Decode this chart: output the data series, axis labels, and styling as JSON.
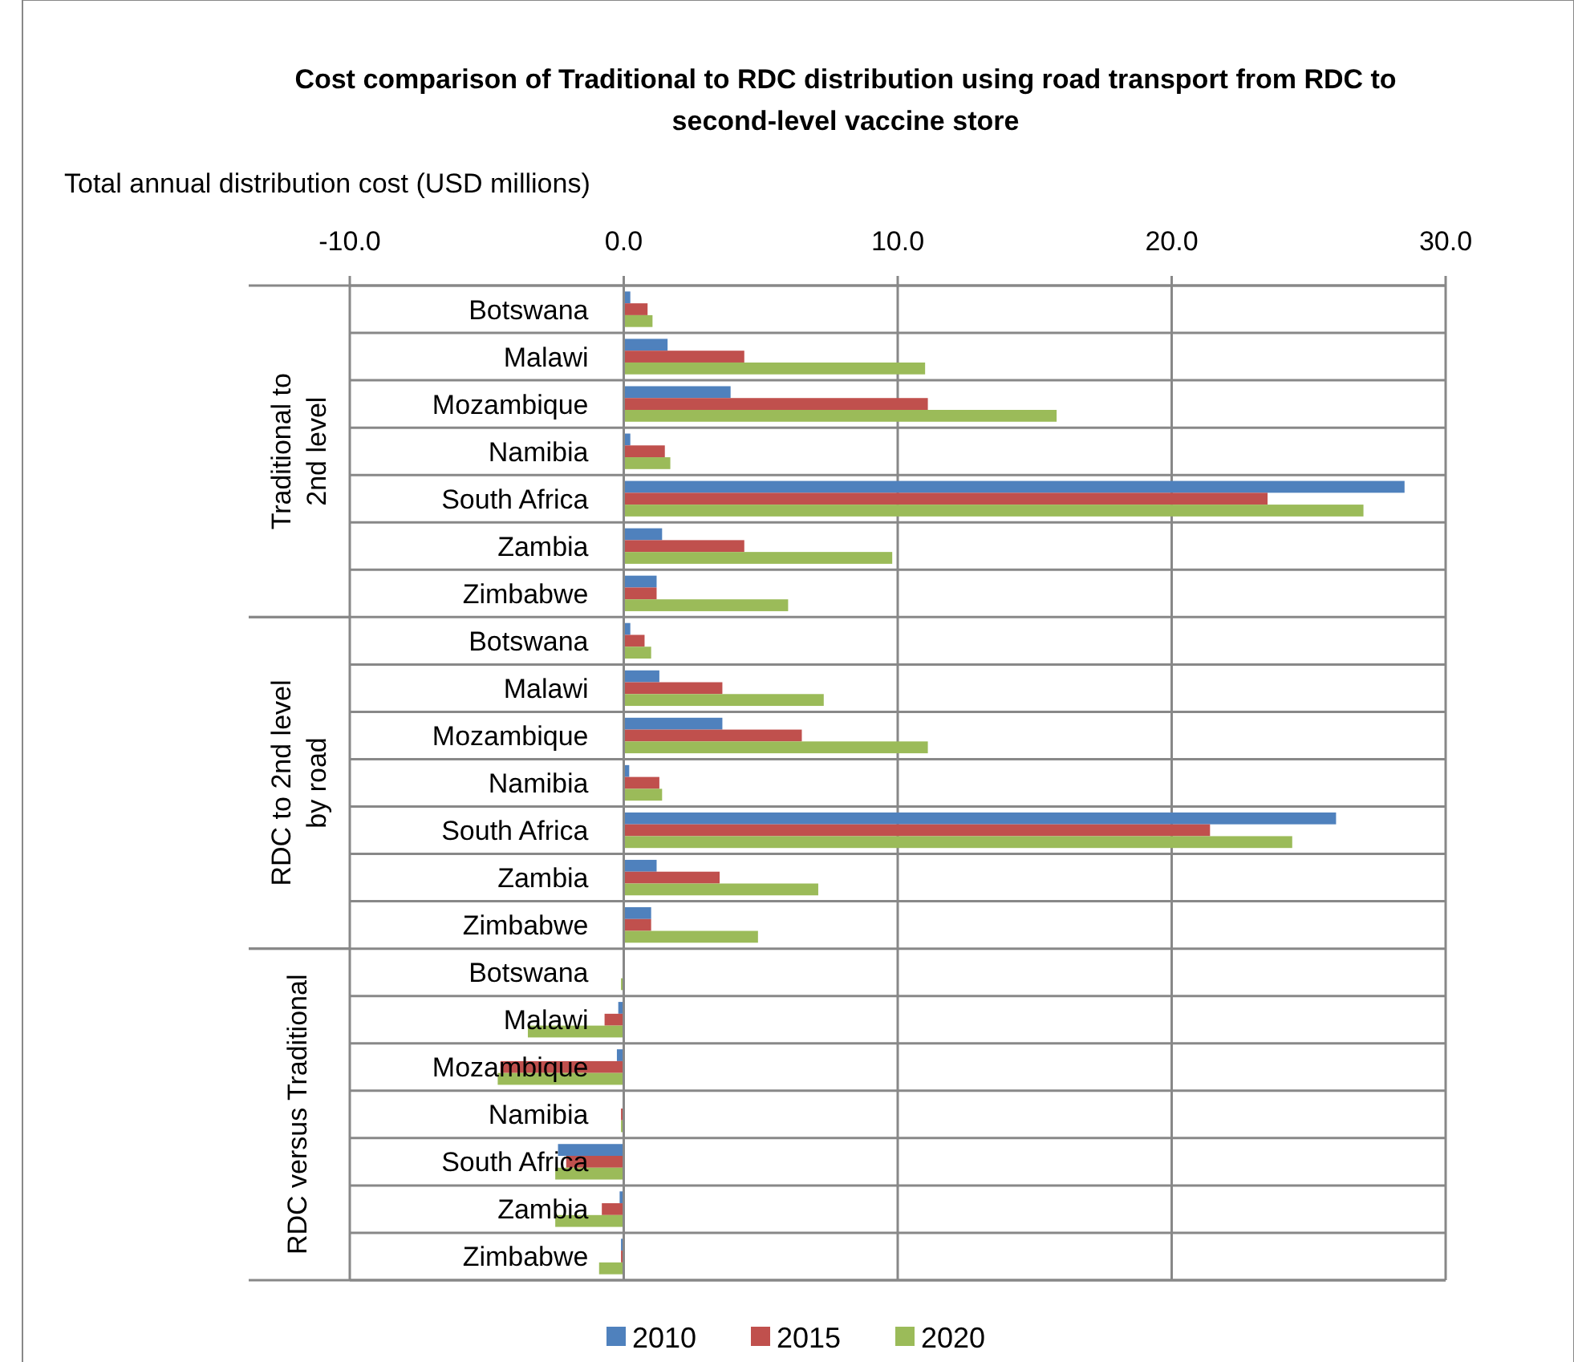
{
  "chart_data": {
    "type": "bar",
    "orientation": "horizontal",
    "title": "Cost comparison of Traditional to RDC distribution using road transport from RDC to second-level vaccine store",
    "xlabel": "Total annual distribution cost (USD millions)",
    "categories": [
      "Botswana",
      "Malawi",
      "Mozambique",
      "Namibia",
      "South Africa",
      "Zambia",
      "Zimbabwe",
      "Botswana",
      "Malawi",
      "Mozambique",
      "Namibia",
      "South Africa",
      "Zambia",
      "Zimbabwe",
      "Botswana",
      "Malawi",
      "Mozambique",
      "Namibia",
      "South Africa",
      "Zambia",
      "Zimbabwe"
    ],
    "annotations": [
      "Traditional  to 2nd level",
      "RDC to 2nd level by road",
      "RDC versus Traditional"
    ],
    "series": [
      {
        "name": "2010",
        "color": "#4f81bd",
        "values": [
          0.24,
          1.6,
          3.9,
          0.24,
          28.5,
          1.4,
          1.2,
          0.24,
          1.3,
          3.6,
          0.2,
          26.0,
          1.2,
          1.0,
          0,
          -0.2,
          -0.25,
          0,
          -2.4,
          -0.15,
          -0.1
        ]
      },
      {
        "name": "2015",
        "color": "#c0504d",
        "values": [
          0.87,
          4.4,
          11.1,
          1.5,
          23.5,
          4.4,
          1.2,
          0.76,
          3.6,
          6.5,
          1.3,
          21.4,
          3.5,
          1.0,
          0,
          -0.7,
          -4.5,
          -0.1,
          -2.1,
          -0.8,
          -0.1
        ]
      },
      {
        "name": "2020",
        "color": "#9bbb59",
        "values": [
          1.05,
          11.0,
          15.8,
          1.7,
          27.0,
          9.8,
          6.0,
          1.0,
          7.3,
          11.1,
          1.4,
          24.4,
          7.1,
          4.9,
          -0.1,
          -3.5,
          -4.6,
          -0.1,
          -2.5,
          -2.5,
          -0.9
        ]
      }
    ],
    "xlim": [
      -10,
      30
    ],
    "xticks": [
      {
        "value": -10,
        "label": "-10.0"
      },
      {
        "value": 0,
        "label": "0.0"
      },
      {
        "value": 10,
        "label": "10.0"
      },
      {
        "value": 20,
        "label": "20.0"
      },
      {
        "value": 30,
        "label": "30.0"
      }
    ],
    "grid": true,
    "legend": "bottom"
  }
}
